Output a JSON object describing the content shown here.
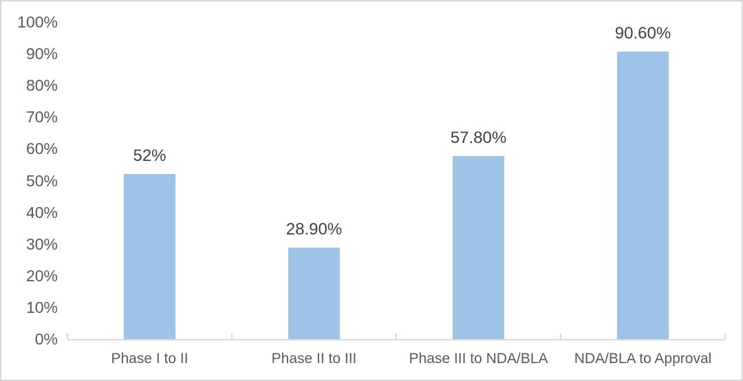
{
  "chart_data": {
    "type": "bar",
    "title": "",
    "xlabel": "",
    "ylabel": "",
    "categories": [
      "Phase I to II",
      "Phase II to III",
      "Phase III to NDA/BLA",
      "NDA/BLA to Approval"
    ],
    "values": [
      52,
      28.9,
      57.8,
      90.6
    ],
    "data_labels": [
      "52%",
      "28.90%",
      "57.80%",
      "90.60%"
    ],
    "ylim": [
      0,
      100
    ],
    "ytick_step": 10,
    "ytick_labels": [
      "0%",
      "10%",
      "20%",
      "30%",
      "40%",
      "50%",
      "60%",
      "70%",
      "80%",
      "90%",
      "100%"
    ],
    "grid": false,
    "legend": null,
    "colors": {
      "bar_fill": "#9DC3E6",
      "axis_line": "#D9D9D9",
      "data_label_text": "#404040",
      "axis_label_text": "#595959",
      "frame_border": "#D8D8D8",
      "background": "#FFFFFF"
    }
  }
}
